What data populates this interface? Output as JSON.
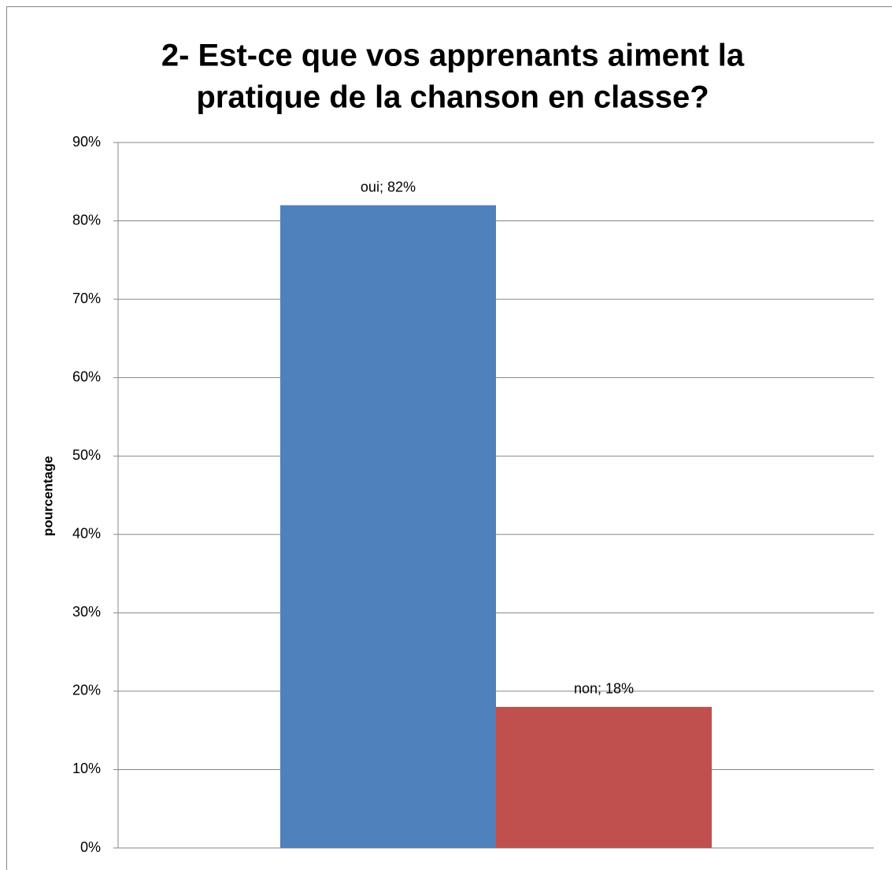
{
  "chart_data": {
    "type": "bar",
    "title": [
      "2- Est-ce que vos apprenants aiment la",
      "pratique de la chanson en classe?"
    ],
    "y_label": "pourcentage",
    "categories": [
      null
    ],
    "series": [
      {
        "name": "oui",
        "color": "#4f81bd",
        "values": [
          82
        ],
        "value_labels": [
          "oui; 82%"
        ]
      },
      {
        "name": "non",
        "color": "#c0504d",
        "values": [
          18
        ],
        "value_labels": [
          "non; 18%"
        ]
      }
    ],
    "ylim": [
      0,
      90
    ],
    "yticks": [
      {
        "value": 0,
        "label": "0%"
      },
      {
        "value": 10,
        "label": "10%"
      },
      {
        "value": 20,
        "label": "20%"
      },
      {
        "value": 30,
        "label": "30%"
      },
      {
        "value": 40,
        "label": "40%"
      },
      {
        "value": 50,
        "label": "50%"
      },
      {
        "value": 60,
        "label": "60%"
      },
      {
        "value": 70,
        "label": "70%"
      },
      {
        "value": 80,
        "label": "80%"
      },
      {
        "value": 90,
        "label": "90%"
      }
    ],
    "grid": true,
    "legend": false
  }
}
